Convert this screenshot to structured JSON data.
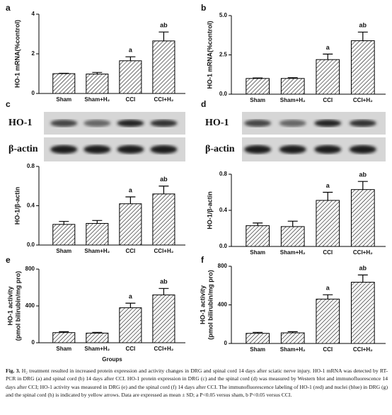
{
  "chart_data": [
    {
      "type": "bar",
      "panel": "a",
      "ylabel": "HO-1 mRNA(%control)",
      "categories": [
        "Sham",
        "Sham+H₂",
        "CCI",
        "CCI+H₂"
      ],
      "values": [
        1.0,
        0.98,
        1.65,
        2.65
      ],
      "errors": [
        0.02,
        0.08,
        0.2,
        0.45
      ],
      "annotations": [
        null,
        null,
        "a",
        "ab"
      ],
      "ylim": [
        0,
        4
      ],
      "yticks": [
        0,
        2,
        4
      ],
      "color": "#000000"
    },
    {
      "type": "bar",
      "panel": "b",
      "ylabel": "HO-1 mRNA(%control)",
      "categories": [
        "Sham",
        "Sham+H₂",
        "CCI",
        "CCI+H₂"
      ],
      "values": [
        1.0,
        1.0,
        2.2,
        3.4
      ],
      "errors": [
        0.03,
        0.05,
        0.35,
        0.55
      ],
      "annotations": [
        null,
        null,
        "a",
        "ab"
      ],
      "ylim": [
        0,
        5
      ],
      "yticks": [
        {
          "value": 0,
          "label": "0.0"
        },
        {
          "value": 2.5,
          "label": "2.5"
        },
        {
          "value": 5,
          "label": "5.0"
        }
      ],
      "color": "#000000"
    },
    {
      "type": "bar",
      "panel": "c",
      "ylabel": "HO-1/β-actin",
      "blot_labels": [
        "HO-1",
        "β-actin"
      ],
      "categories": [
        "Sham",
        "Sham+H₂",
        "CCI",
        "CCI+H₂"
      ],
      "values": [
        0.21,
        0.22,
        0.42,
        0.52
      ],
      "errors": [
        0.03,
        0.03,
        0.07,
        0.08
      ],
      "annotations": [
        null,
        null,
        "a",
        "ab"
      ],
      "ylim": [
        0,
        0.8
      ],
      "yticks": [
        {
          "value": 0,
          "label": "0.0"
        },
        0.4,
        0.8
      ],
      "color": "#000000"
    },
    {
      "type": "bar",
      "panel": "d",
      "ylabel": "HO-1/β-actin",
      "blot_labels": [
        "HO-1",
        "β-actin"
      ],
      "categories": [
        "Sham",
        "Sham+H₂",
        "CCI",
        "CCI+H₂"
      ],
      "values": [
        0.23,
        0.22,
        0.51,
        0.63
      ],
      "errors": [
        0.03,
        0.06,
        0.09,
        0.09
      ],
      "annotations": [
        null,
        null,
        "a",
        "ab"
      ],
      "ylim": [
        0,
        0.8
      ],
      "yticks": [
        {
          "value": 0,
          "label": "0.0"
        },
        0.4,
        0.8
      ],
      "color": "#000000"
    },
    {
      "type": "bar",
      "panel": "e",
      "ylabel": [
        "HO-1 activity",
        "(pmol bilirubin/mg pro)"
      ],
      "xlabel": "Groups",
      "categories": [
        "Sham",
        "Sham+H₂",
        "CCI",
        "CCI+H₂"
      ],
      "values": [
        110,
        105,
        380,
        520
      ],
      "errors": [
        10,
        8,
        50,
        70
      ],
      "annotations": [
        null,
        null,
        "a",
        "ab"
      ],
      "ylim": [
        0,
        800
      ],
      "yticks": [
        0,
        400,
        800
      ],
      "color": "#000000"
    },
    {
      "type": "bar",
      "panel": "f",
      "ylabel": [
        "HO-1 activity",
        "(pmol bilirubin/mg pro)"
      ],
      "categories": [
        "Sham",
        "Sham+H₂",
        "CCI",
        "CCI+H₂"
      ],
      "values": [
        105,
        110,
        460,
        635
      ],
      "errors": [
        10,
        12,
        45,
        75
      ],
      "annotations": [
        null,
        null,
        "a",
        "ab"
      ],
      "ylim": [
        0,
        800
      ],
      "yticks": [
        0,
        400,
        800
      ],
      "color": "#000000"
    }
  ],
  "caption": {
    "label": "Fig. 3.",
    "text": "H₂ treatment resulted in increased protein expression and activity changes in DRG and spinal cord 14 days after sciatic nerve injury. HO-1 mRNA was detected by RT-PCR in DRG (a) and spinal cord (b) 14 days after CCI. HO-1 protein expression in DRG (c) and the spinal cord (d) was measured by Western blot and immunofluorescence 14 days after CCI; HO-1 activity was measured in DRG (e) and the spinal cord (f) 14 days after CCI. The immunofluorescence labeling of HO-1 (red) and nuclei (blue) in DRG (g) and the spinal cord (h) is indicated by yellow arrows. Data are expressed as mean ± SD; a P<0.05 versus sham, b P<0.05 versus CCI."
  }
}
